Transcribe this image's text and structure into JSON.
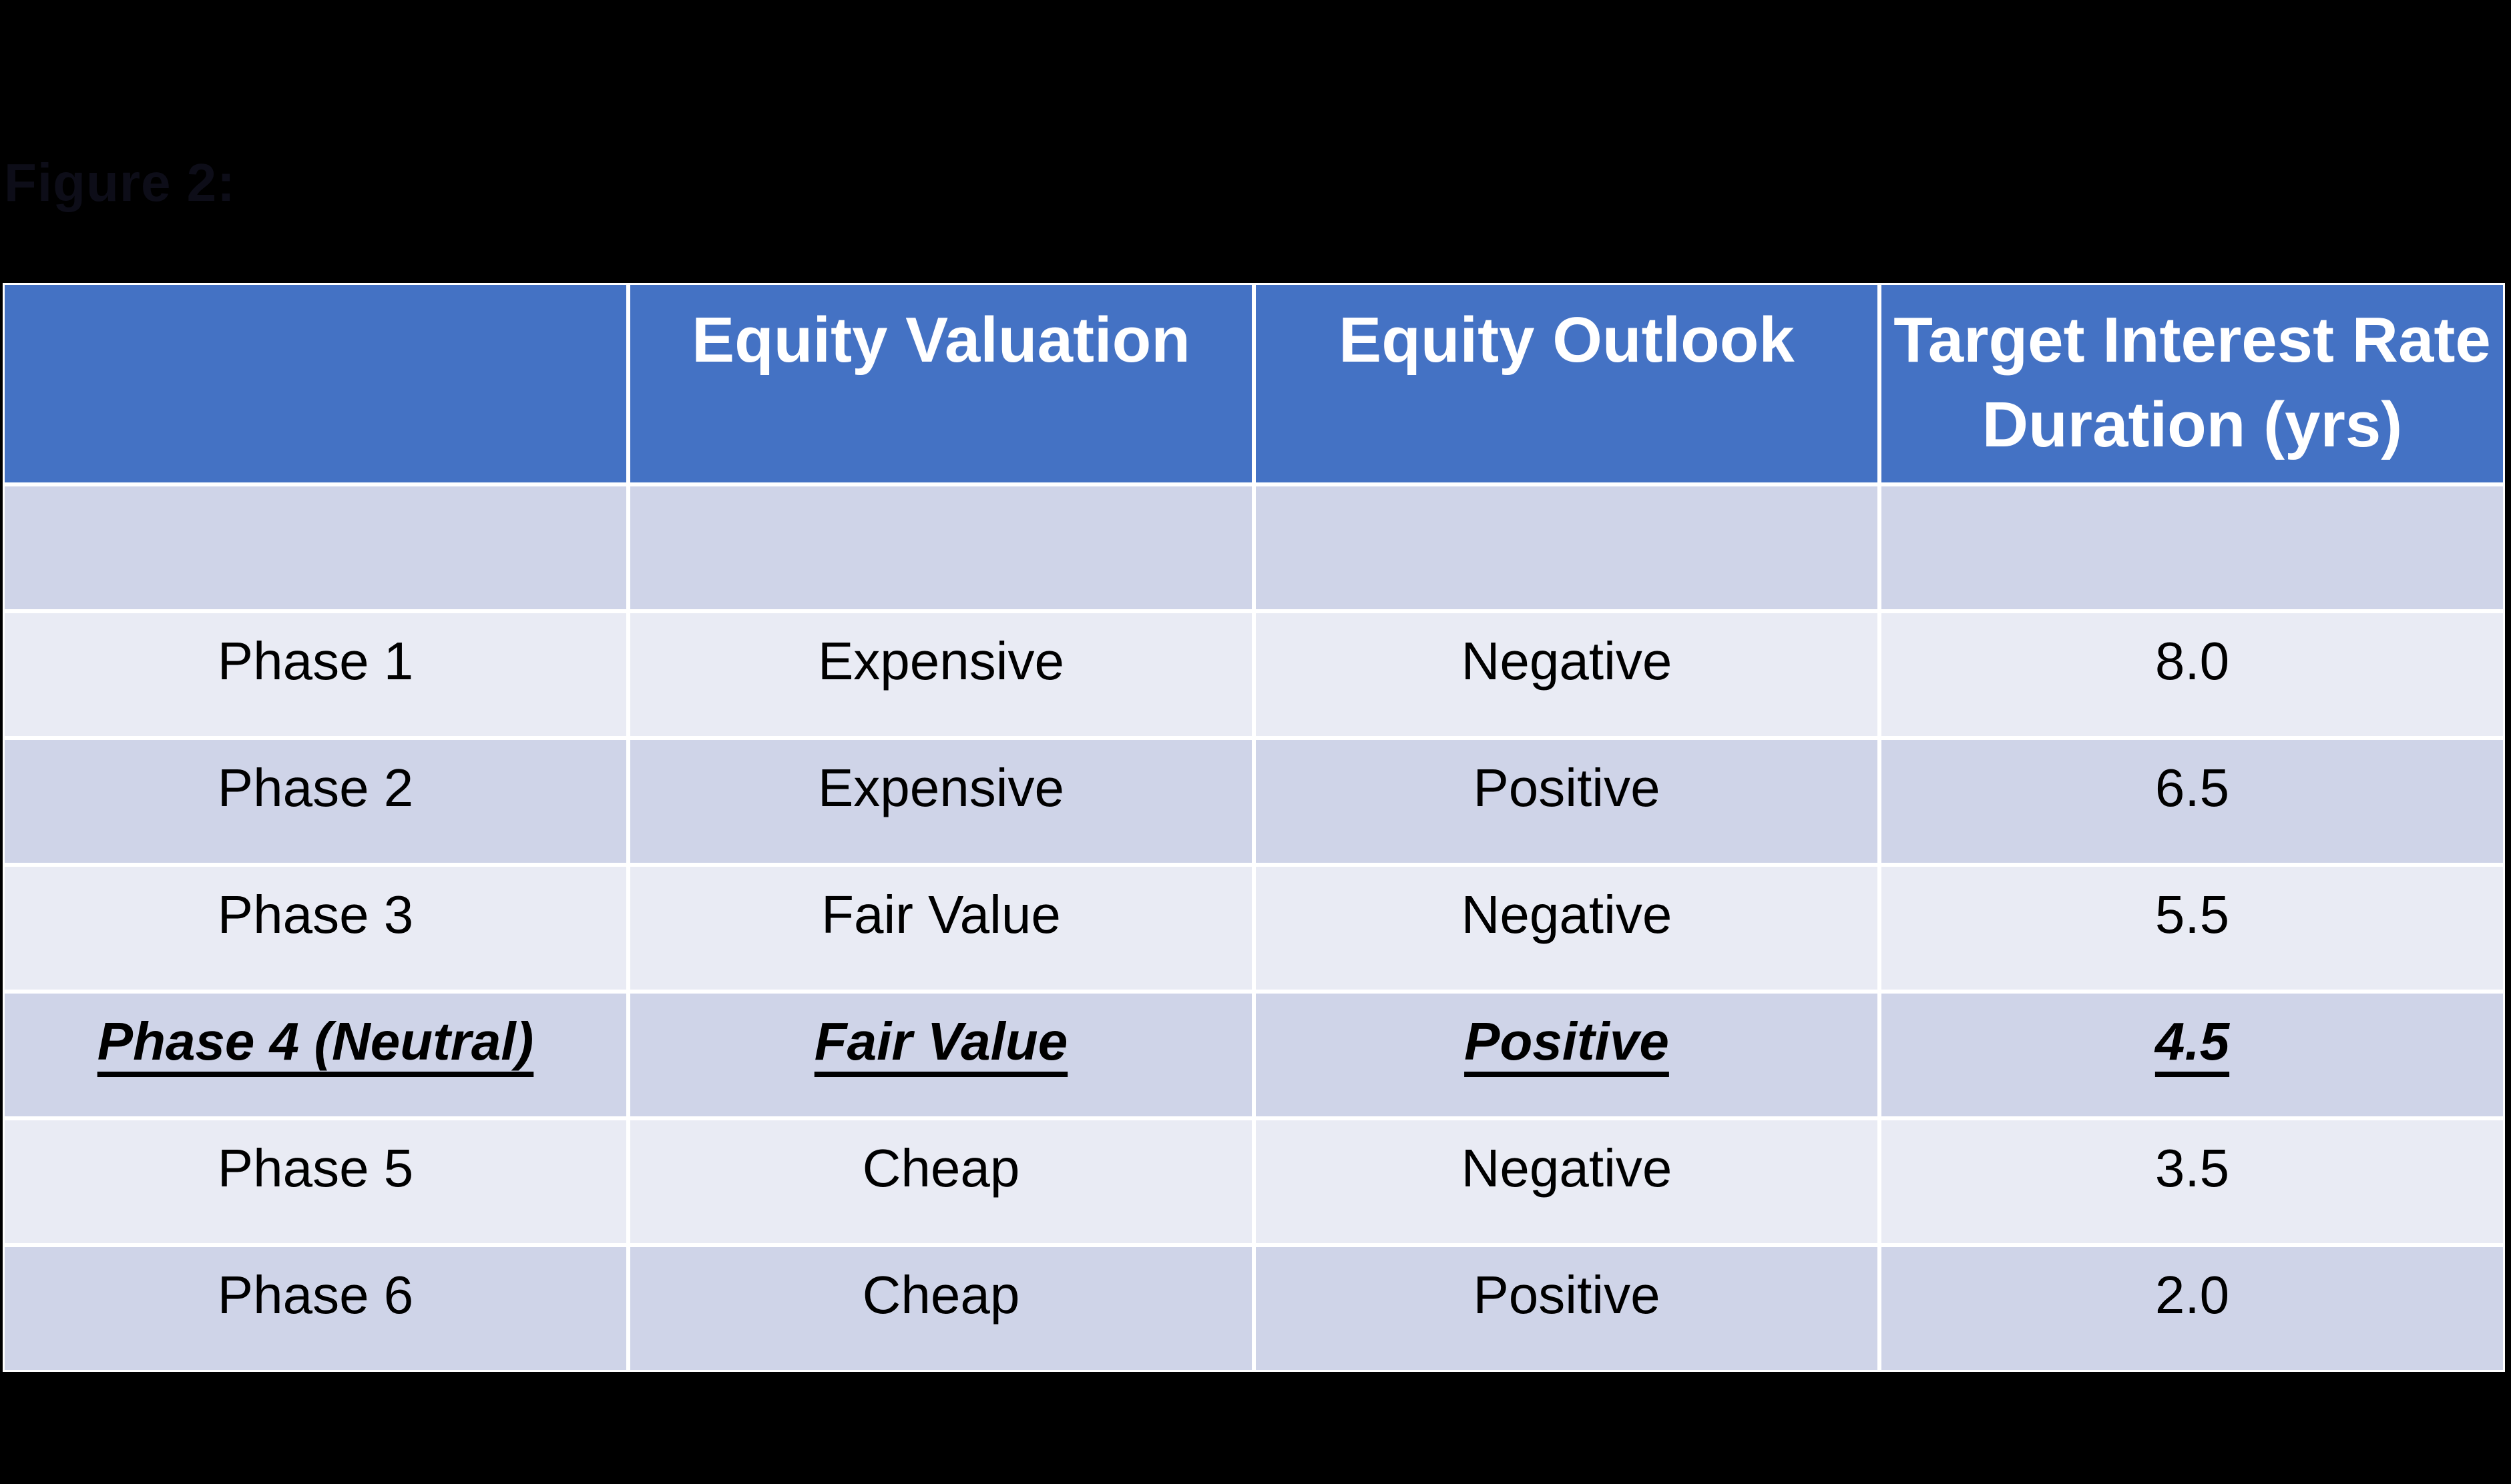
{
  "figure": {
    "caption": "Figure 2:"
  },
  "colors": {
    "background": "#000000",
    "header_bg": "#4472C4",
    "header_text": "#FFFFFF",
    "band_dark": "#CFD4E8",
    "band_light": "#E9EBF4",
    "body_text": "#000000",
    "grid_lines": "#FFFFFF"
  },
  "table": {
    "columns": [
      {
        "label": ""
      },
      {
        "label": "Equity Valuation"
      },
      {
        "label": "Equity Outlook"
      },
      {
        "label": "Target Interest Rate",
        "label_line2": "Duration (yrs)"
      }
    ],
    "rows": [
      {
        "label": "",
        "valuation": "",
        "outlook": "",
        "duration": ""
      },
      {
        "label": "Phase 1",
        "valuation": "Expensive",
        "outlook": "Negative",
        "duration": "8.0"
      },
      {
        "label": "Phase 2",
        "valuation": "Expensive",
        "outlook": "Positive",
        "duration": "6.5"
      },
      {
        "label": "Phase 3",
        "valuation": "Fair Value",
        "outlook": "Negative",
        "duration": "5.5"
      },
      {
        "label": "Phase 4 (Neutral)",
        "valuation": "Fair Value",
        "outlook": "Positive",
        "duration": "4.5"
      },
      {
        "label": "Phase 5",
        "valuation": "Cheap",
        "outlook": "Negative",
        "duration": "3.5"
      },
      {
        "label": "Phase 6",
        "valuation": "Cheap",
        "outlook": "Positive",
        "duration": "2.0"
      }
    ]
  }
}
